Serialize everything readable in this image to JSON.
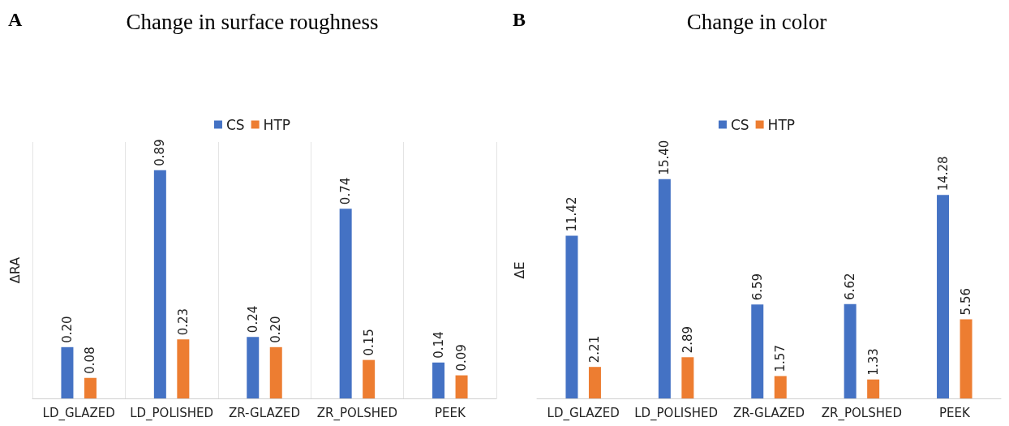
{
  "chart_data": [
    {
      "type": "bar",
      "title": "Change in surface roughness",
      "ylabel": "ΔRA",
      "annotations": [
        "A"
      ],
      "categories": [
        "LD_GLAZED",
        "LD_POLISHED",
        "ZR-GLAZED",
        "ZR_POLSHED",
        "PEEK"
      ],
      "series": [
        {
          "name": "CS",
          "color": "#4472c4",
          "values": [
            0.2,
            0.89,
            0.24,
            0.74,
            0.14
          ],
          "value_labels": [
            "0.20",
            "0.89",
            "0.24",
            "0.74",
            "0.14"
          ]
        },
        {
          "name": "HTP",
          "color": "#ed7d31",
          "values": [
            0.08,
            0.23,
            0.2,
            0.15,
            0.09
          ],
          "value_labels": [
            "0.08",
            "0.23",
            "0.20",
            "0.15",
            "0.09"
          ]
        }
      ],
      "legend": "top",
      "grid": "x"
    },
    {
      "type": "bar",
      "title": "Change in color",
      "ylabel": "ΔE",
      "annotations": [
        "B"
      ],
      "categories": [
        "LD_GLAZED",
        "LD_POLISHED",
        "ZR-GLAZED",
        "ZR_POLSHED",
        "PEEK"
      ],
      "series": [
        {
          "name": "CS",
          "color": "#4472c4",
          "values": [
            11.42,
            15.4,
            6.59,
            6.62,
            14.28
          ],
          "value_labels": [
            "11.42",
            "15.40",
            "6.59",
            "6.62",
            "14.28"
          ]
        },
        {
          "name": "HTP",
          "color": "#ed7d31",
          "values": [
            2.21,
            2.89,
            1.57,
            1.33,
            5.56
          ],
          "value_labels": [
            "2.21",
            "2.89",
            "1.57",
            "1.33",
            "5.56"
          ]
        }
      ],
      "legend": "top",
      "grid": false
    }
  ]
}
